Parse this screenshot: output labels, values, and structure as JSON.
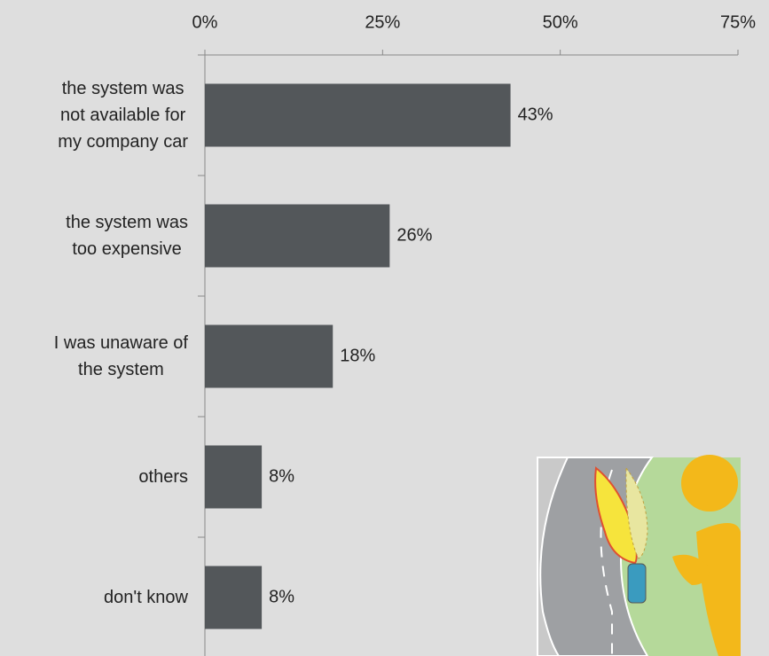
{
  "chart_data": {
    "type": "bar",
    "orientation": "horizontal",
    "categories": [
      "the system was\nnot available for\nmy company car",
      "the system was\ntoo expensive",
      "I was unaware of\nthe system",
      "others",
      "don't know"
    ],
    "values": [
      43,
      26,
      18,
      8,
      8
    ],
    "value_labels": [
      "43%",
      "26%",
      "18%",
      "8%",
      "8%"
    ],
    "color": "#53575a",
    "xlim": [
      0,
      75
    ],
    "xticks": [
      {
        "value": 0,
        "label": "0%"
      },
      {
        "value": 25,
        "label": "25%"
      },
      {
        "value": 50,
        "label": "50%"
      },
      {
        "value": 75,
        "label": "75%"
      }
    ]
  }
}
